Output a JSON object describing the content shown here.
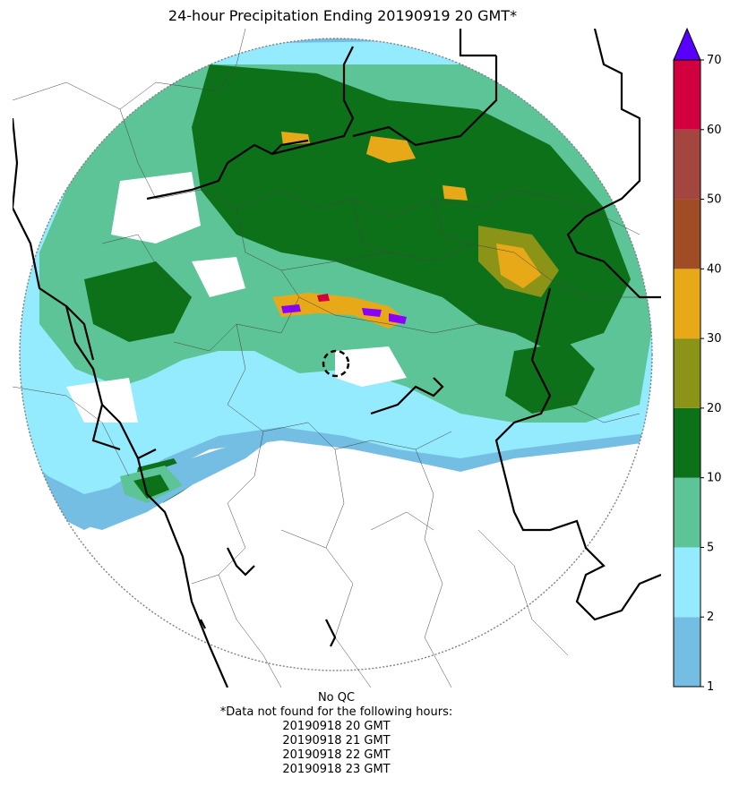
{
  "title": "24-hour Precipitation Ending 20190919 20 GMT*",
  "colorbar": {
    "ticks": [
      "1",
      "2",
      "5",
      "10",
      "20",
      "30",
      "40",
      "50",
      "60",
      "70"
    ],
    "colors": [
      "#74bde3",
      "#94ebfd",
      "#5cc496",
      "#0d7119",
      "#8c9418",
      "#e8a919",
      "#a04c24",
      "#a2463f",
      "#d2003f"
    ],
    "extend_color": "#5800ff"
  },
  "legend_colors": {
    "light_blue": "#74bde3",
    "cyan": "#94ebfd",
    "light_green": "#5cc496",
    "dark_green": "#0d7119",
    "olive": "#8c9418",
    "orange": "#e8a919",
    "brown": "#a04c24",
    "purple": "#8a00ff"
  },
  "footer": {
    "qc": "No QC",
    "note": "*Data not found for the following hours:",
    "hours": [
      "20190918 20 GMT",
      "20190918 21 GMT",
      "20190918 22 GMT",
      "20190918 23 GMT"
    ]
  }
}
